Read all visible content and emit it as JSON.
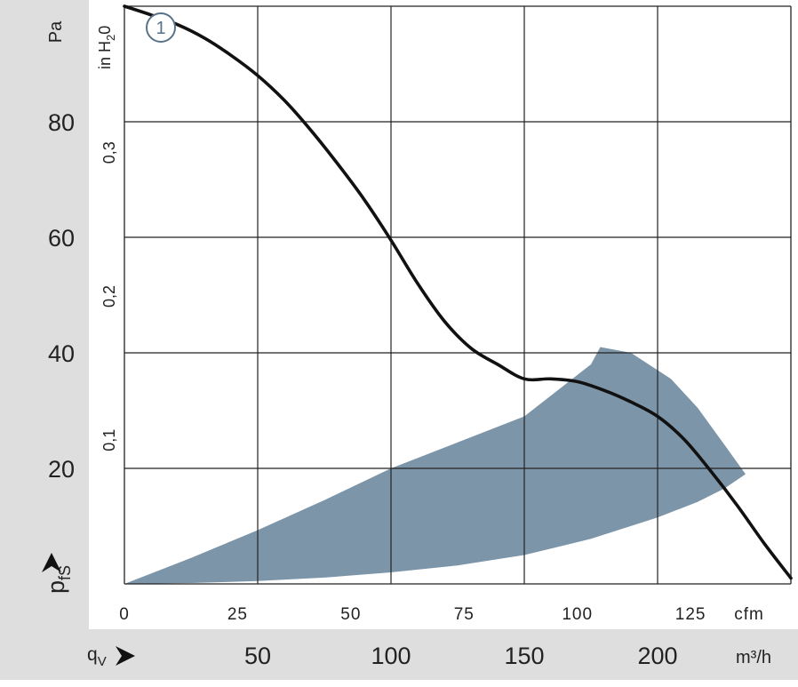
{
  "chart_data": {
    "type": "line",
    "title": "",
    "pressure_axis": {
      "label_main": "p",
      "label_sub": "fS",
      "unit": "Pa",
      "ticks": [
        20,
        40,
        60,
        80
      ],
      "range": [
        0,
        100
      ]
    },
    "inh2o_axis": {
      "label": "in H",
      "label_sub": "2",
      "label_end": "0",
      "ticks": [
        {
          "value": 0.1,
          "label": "0,1"
        },
        {
          "value": 0.2,
          "label": "0,2"
        },
        {
          "value": 0.3,
          "label": "0,3"
        }
      ]
    },
    "cfm_axis": {
      "unit": "cfm",
      "ticks": [
        0,
        25,
        50,
        75,
        100,
        125
      ],
      "range": [
        0,
        147
      ]
    },
    "m3h_axis": {
      "label_main": "q",
      "label_sub": "V",
      "unit": "m³/h",
      "ticks": [
        50,
        100,
        150,
        200
      ],
      "range": [
        0,
        250
      ]
    },
    "series": [
      {
        "marker": "1",
        "x_m3h": [
          0,
          10,
          20,
          30,
          40,
          50,
          60,
          70,
          80,
          90,
          100,
          110,
          120,
          130,
          140,
          150,
          160,
          170,
          180,
          190,
          200,
          210,
          220,
          230,
          240,
          250
        ],
        "y_pa": [
          100,
          98.5,
          96.8,
          94.5,
          91.5,
          88,
          83.7,
          78.5,
          72.7,
          66.5,
          59.5,
          52,
          45.5,
          40.8,
          38,
          35.5,
          35.5,
          35,
          33.5,
          31.5,
          29,
          25,
          19.5,
          13.5,
          7,
          1
        ]
      }
    ],
    "operating_region": {
      "color": "#7c95a9",
      "x_m3h": [
        0,
        25,
        50,
        75,
        100,
        125,
        150,
        175,
        178.5,
        190,
        205,
        215,
        226,
        233,
        233,
        225,
        215,
        200,
        175,
        150,
        125,
        100,
        75,
        50,
        25,
        0
      ],
      "y_pa": [
        0,
        4.5,
        9.3,
        14.5,
        20,
        24.5,
        29,
        38,
        41,
        40,
        35.5,
        30.5,
        23.5,
        19,
        19,
        16.5,
        14.2,
        11.5,
        7.8,
        5,
        3.2,
        2,
        1.1,
        0.5,
        0.15,
        0
      ]
    },
    "colors": {
      "curve": "#111111",
      "grid": "#222222",
      "band": "#dedede",
      "marker": "#5a7287"
    }
  }
}
